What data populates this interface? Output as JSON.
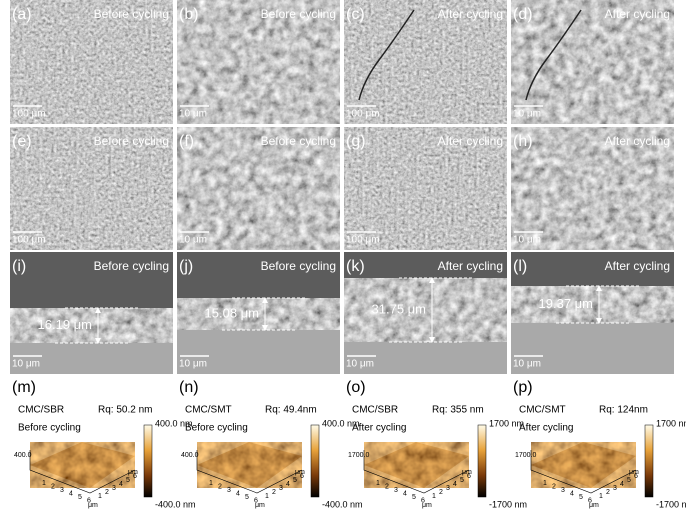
{
  "sem_panels": [
    {
      "label": "(a)",
      "condition": "Before cycling",
      "scale": "100 μm"
    },
    {
      "label": "(b)",
      "condition": "Before cycling",
      "scale": "10 μm"
    },
    {
      "label": "(c)",
      "condition": "After cycling",
      "scale": "100 μm"
    },
    {
      "label": "(d)",
      "condition": "After cycling",
      "scale": "10 μm"
    },
    {
      "label": "(e)",
      "condition": "Before cycling",
      "scale": "100 μm"
    },
    {
      "label": "(f)",
      "condition": "Before cycling",
      "scale": "10 μm"
    },
    {
      "label": "(g)",
      "condition": "After cycling",
      "scale": "100 μm"
    },
    {
      "label": "(h)",
      "condition": "After cycling",
      "scale": "10 μm"
    },
    {
      "label": "(i)",
      "condition": "Before cycling",
      "scale": "10 μm",
      "thickness": "16.19 μm"
    },
    {
      "label": "(j)",
      "condition": "Before cycling",
      "scale": "10 μm",
      "thickness": "15.08 μm"
    },
    {
      "label": "(k)",
      "condition": "After cycling",
      "scale": "10 μm",
      "thickness": "31.75 μm"
    },
    {
      "label": "(l)",
      "condition": "After cycling",
      "scale": "10 μm",
      "thickness": "19.37 μm"
    }
  ],
  "afm_panels": [
    {
      "label": "(m)",
      "binder": "CMC/SBR",
      "rq": "Rq: 50.2 nm",
      "condition": "Before cycling",
      "z_label": "400.0",
      "cbar_max": "400.0 nm",
      "cbar_min": "-400.0 nm"
    },
    {
      "label": "(n)",
      "binder": "CMC/SMT",
      "rq": "Rq: 49.4nm",
      "condition": "Before cycling",
      "z_label": "400.0",
      "cbar_max": "400.0 nm",
      "cbar_min": "-400.0 nm"
    },
    {
      "label": "(o)",
      "binder": "CMC/SBR",
      "rq": "Rq: 355 nm",
      "condition": "After cycling",
      "z_label": "1700.0",
      "cbar_max": "1700 nm",
      "cbar_min": "-1700 nm"
    },
    {
      "label": "(p)",
      "binder": "CMC/SMT",
      "rq": "Rq: 124nm",
      "condition": "After cycling",
      "z_label": "1700.0",
      "cbar_max": "1700 nm",
      "cbar_min": "-1700 nm"
    }
  ],
  "afm_axis_ticks": [
    "1",
    "2",
    "3",
    "4",
    "5",
    "6"
  ],
  "afm_axis_unit": "μm"
}
